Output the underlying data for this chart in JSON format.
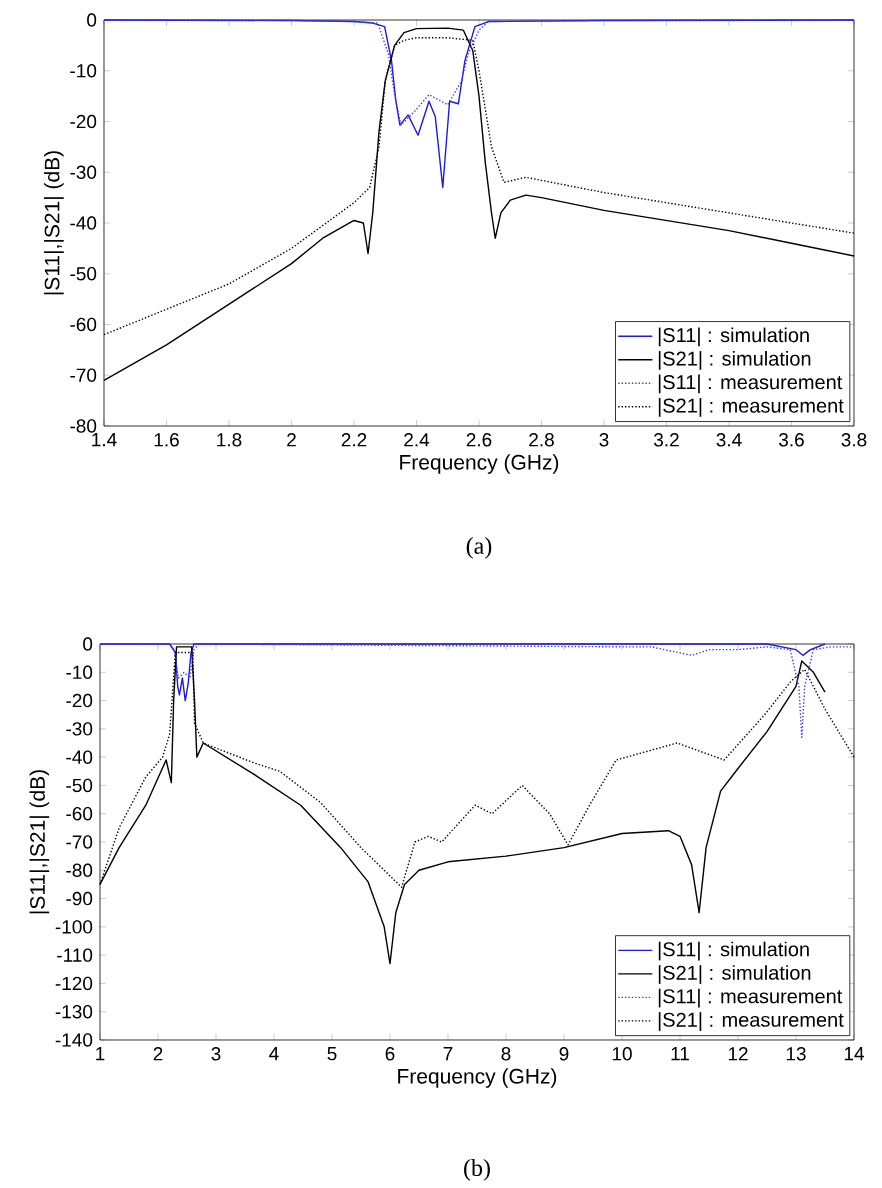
{
  "chart_data": [
    {
      "type": "line",
      "xlabel": "Frequency (GHz)",
      "ylabel": "|S11|,|S21| (dB)",
      "annotations": [
        "(a)"
      ],
      "legend": "bottom right",
      "xlim": [
        1.4,
        3.8
      ],
      "xticks": [
        1.4,
        1.6,
        1.8,
        2,
        2.2,
        2.4,
        2.6,
        2.8,
        3,
        3.2,
        3.4,
        3.6,
        3.8
      ],
      "ylim": [
        -80,
        0
      ],
      "yticks": [
        -80,
        -70,
        -60,
        -50,
        -40,
        -30,
        -20,
        -10,
        0
      ],
      "series": [
        {
          "name": "|S11| : simulation",
          "color": "#1c1cd8",
          "line_style": "solid",
          "x": [
            1.4,
            2.0,
            2.2,
            2.26,
            2.298,
            2.32,
            2.334,
            2.347,
            2.373,
            2.405,
            2.44,
            2.46,
            2.484,
            2.506,
            2.534,
            2.555,
            2.587,
            2.63,
            3.0,
            3.8
          ],
          "values": [
            0,
            -0.1,
            -0.3,
            -0.6,
            -1.3,
            -8,
            -16,
            -20.7,
            -18.7,
            -22.7,
            -16,
            -19,
            -33,
            -16,
            -16.5,
            -8,
            -1.3,
            -0.3,
            -0.1,
            0
          ]
        },
        {
          "name": "|S21| : simulation",
          "color": "#000000",
          "line_style": "solid",
          "x": [
            1.4,
            1.6,
            1.8,
            2.0,
            2.1,
            2.2,
            2.23,
            2.245,
            2.26,
            2.28,
            2.3,
            2.33,
            2.36,
            2.4,
            2.5,
            2.55,
            2.58,
            2.6,
            2.62,
            2.64,
            2.652,
            2.67,
            2.7,
            2.75,
            2.8,
            3.0,
            3.2,
            3.4,
            3.6,
            3.8
          ],
          "values": [
            -71,
            -64,
            -56,
            -48,
            -43,
            -39.5,
            -40,
            -46,
            -38,
            -22,
            -12,
            -5,
            -2.5,
            -1.7,
            -1.6,
            -2,
            -6,
            -15,
            -28,
            -38,
            -43,
            -38,
            -35.5,
            -34.5,
            -35,
            -37.5,
            -39.5,
            -41.5,
            -44,
            -46.5
          ]
        },
        {
          "name": "|S11| : measurement",
          "color": "#3c3cf0",
          "line_style": "dotted",
          "x": [
            1.4,
            2.0,
            2.2,
            2.276,
            2.31,
            2.33,
            2.35,
            2.394,
            2.44,
            2.5,
            2.544,
            2.565,
            2.6,
            2.63,
            3.0,
            3.8
          ],
          "values": [
            0,
            -0.1,
            -0.3,
            -0.6,
            -6.7,
            -14.7,
            -20.7,
            -18,
            -14.7,
            -16.7,
            -12,
            -6.7,
            -2,
            -0.3,
            -0.1,
            0
          ]
        },
        {
          "name": "|S21| : measurement",
          "color": "#000000",
          "line_style": "dotted",
          "x": [
            1.4,
            1.6,
            1.8,
            2.0,
            2.2,
            2.25,
            2.28,
            2.3,
            2.33,
            2.36,
            2.4,
            2.5,
            2.58,
            2.6,
            2.64,
            2.68,
            2.75,
            3.0,
            3.4,
            3.8
          ],
          "values": [
            -62,
            -57,
            -52,
            -45,
            -36,
            -33,
            -25,
            -12,
            -5,
            -4,
            -3.5,
            -3.5,
            -4,
            -10,
            -25,
            -32,
            -31,
            -34,
            -38,
            -42
          ]
        }
      ]
    },
    {
      "type": "line",
      "xlabel": "Frequency (GHz)",
      "ylabel": "|S11|,|S21| (dB)",
      "annotations": [
        "(b)"
      ],
      "legend": "bottom right",
      "xlim": [
        1,
        14
      ],
      "xticks": [
        1,
        2,
        3,
        4,
        5,
        6,
        7,
        8,
        9,
        10,
        11,
        12,
        13,
        14
      ],
      "ylim": [
        -140,
        0
      ],
      "yticks": [
        -140,
        -130,
        -120,
        -110,
        -100,
        -90,
        -80,
        -70,
        -60,
        -50,
        -40,
        -30,
        -20,
        -10,
        0
      ],
      "series": [
        {
          "name": "|S11| : simulation",
          "color": "#1c1cd8",
          "line_style": "solid",
          "x": [
            1,
            2.2,
            2.3,
            2.34,
            2.37,
            2.42,
            2.47,
            2.52,
            2.57,
            2.62,
            12.5,
            13.0,
            13.12,
            13.25,
            13.5
          ],
          "values": [
            0,
            0,
            -3,
            -15,
            -18,
            -12,
            -20,
            -14,
            -3,
            0,
            0,
            -2,
            -4,
            -2,
            0
          ]
        },
        {
          "name": "|S21| : simulation",
          "color": "#000000",
          "line_style": "solid",
          "x": [
            1,
            1.33,
            1.79,
            2.14,
            2.23,
            2.27,
            2.32,
            2.49,
            2.58,
            2.63,
            2.67,
            2.78,
            3.65,
            4.46,
            5.15,
            5.62,
            5.9,
            6.0,
            6.1,
            6.25,
            6.5,
            7,
            8,
            9,
            10,
            10.8,
            11.0,
            11.2,
            11.33,
            11.45,
            11.7,
            12,
            12.5,
            13,
            13.1,
            13.3,
            13.5
          ],
          "values": [
            -85,
            -72,
            -57,
            -41,
            -49,
            -20,
            -1,
            -1,
            -1,
            -20,
            -40,
            -35,
            -46,
            -57,
            -72,
            -84,
            -100,
            -113,
            -95,
            -85,
            -80,
            -77,
            -75,
            -72,
            -67,
            -66,
            -68,
            -78,
            -95,
            -72,
            -52,
            -44,
            -31,
            -15,
            -6,
            -10,
            -17
          ]
        },
        {
          "name": "|S11| : measurement",
          "color": "#3c3cf0",
          "line_style": "dotted",
          "x": [
            1,
            2.2,
            2.28,
            2.35,
            2.45,
            2.55,
            2.62,
            2.7,
            10,
            10.5,
            11.2,
            11.5,
            12,
            12.5,
            12.9,
            13.05,
            13.1,
            13.15,
            13.3,
            13.6,
            14
          ],
          "values": [
            0,
            0,
            -2,
            -12,
            -10,
            -12,
            -2,
            0,
            -1,
            -1,
            -4,
            -2,
            -2,
            -1,
            -2,
            -15,
            -33,
            -15,
            -2,
            -1,
            -1
          ]
        },
        {
          "name": "|S21| : measurement",
          "color": "#000000",
          "line_style": "dotted",
          "x": [
            1,
            1.33,
            1.79,
            2.08,
            2.2,
            2.3,
            2.6,
            2.63,
            2.78,
            3.65,
            4.1,
            4.8,
            5.5,
            6.2,
            6.43,
            6.66,
            6.89,
            7.47,
            7.76,
            8.28,
            8.75,
            9.07,
            9.44,
            9.9,
            10.95,
            11.76,
            12.46,
            12.92,
            13.15,
            13.5,
            14
          ],
          "values": [
            -85,
            -65,
            -47,
            -40,
            -32,
            -3,
            -3,
            -28,
            -35,
            -42,
            -45,
            -56,
            -72,
            -86,
            -70,
            -68,
            -70,
            -57,
            -60,
            -50,
            -60,
            -71,
            -57,
            -41,
            -35,
            -41,
            -25,
            -13,
            -9,
            -23,
            -40
          ]
        }
      ]
    }
  ]
}
